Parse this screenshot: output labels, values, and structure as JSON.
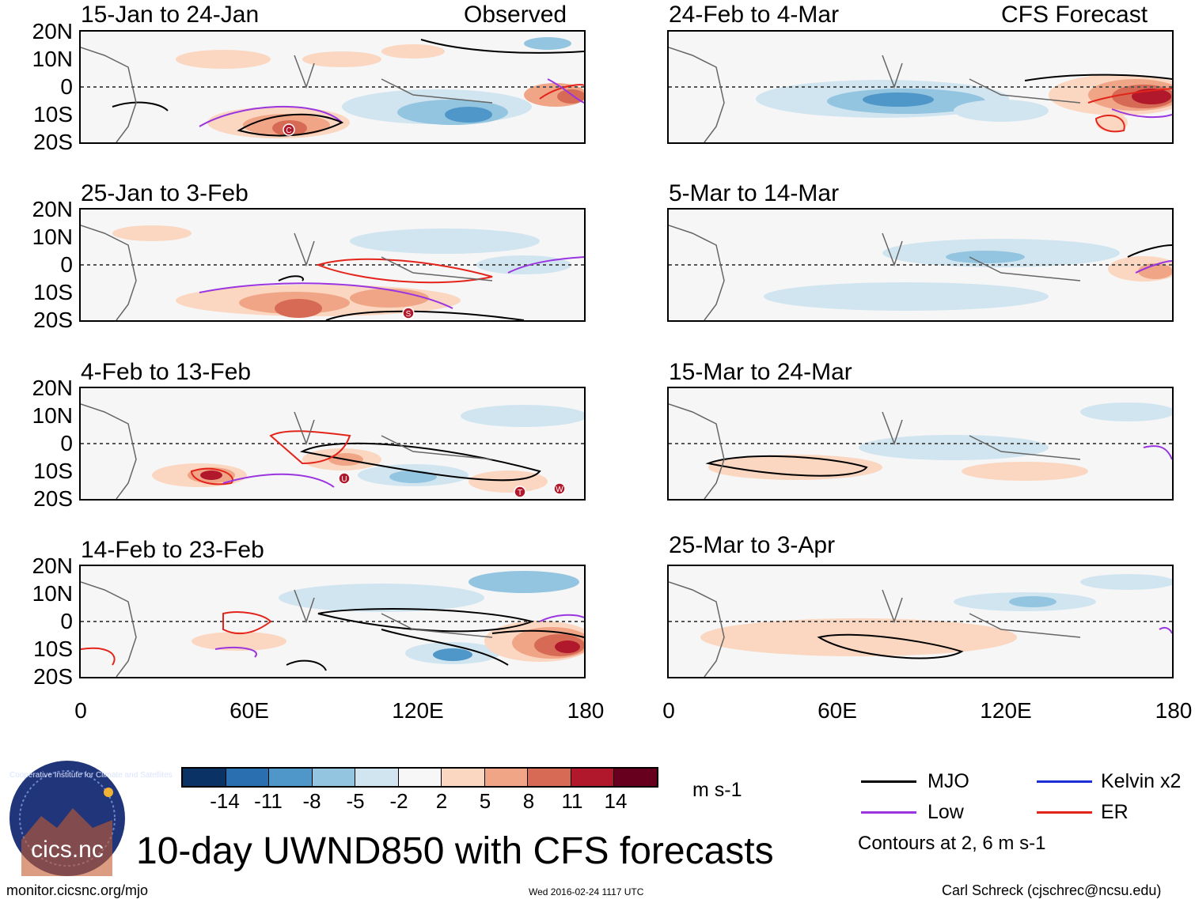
{
  "panels": [
    {
      "title": "15-Jan to 24-Jan",
      "tag": "Observed",
      "cyclones": [
        "C"
      ]
    },
    {
      "title": "24-Feb to 4-Mar",
      "tag": "CFS Forecast",
      "cyclones": []
    },
    {
      "title": "25-Jan to 3-Feb",
      "tag": "",
      "cyclones": [
        "S"
      ]
    },
    {
      "title": "5-Mar to 14-Mar",
      "tag": "",
      "cyclones": []
    },
    {
      "title": "4-Feb to 13-Feb",
      "tag": "",
      "cyclones": [
        "U",
        "T",
        "W"
      ]
    },
    {
      "title": "15-Mar to 24-Mar",
      "tag": "",
      "cyclones": []
    },
    {
      "title": "14-Feb to 23-Feb",
      "tag": "",
      "cyclones": []
    },
    {
      "title": "25-Mar to 3-Apr",
      "tag": "",
      "cyclones": []
    }
  ],
  "lat_labels": [
    "20N",
    "10N",
    "0",
    "10S",
    "20S"
  ],
  "lon_labels": [
    "0",
    "60E",
    "120E",
    "180"
  ],
  "colorbar": {
    "colors": [
      "#0a3264",
      "#2a6fb0",
      "#4f97c8",
      "#93c4e0",
      "#d1e5f0",
      "#f7f7f7",
      "#fbd6c0",
      "#f0a587",
      "#d66a55",
      "#b2182b",
      "#67001f"
    ],
    "labels": [
      "-14",
      "-11",
      "-8",
      "-5",
      "-2",
      "2",
      "5",
      "8",
      "11",
      "14"
    ],
    "units": "m s-1"
  },
  "legend": {
    "items": [
      {
        "label": "MJO",
        "color": "#000000"
      },
      {
        "label": "Kelvin x2",
        "color": "#1f2fd6"
      },
      {
        "label": "Low",
        "color": "#9a35e0"
      },
      {
        "label": "ER",
        "color": "#e3241b"
      }
    ],
    "contours_note": "Contours at 2, 6 m s-1"
  },
  "logo": {
    "text": "cics.nc",
    "ring_text": "Cooperative Institute for Climate and Satellites"
  },
  "main_title": "10-day UWND850 with CFS forecasts",
  "footer": {
    "url": "monitor.cicsnc.org/mjo",
    "timestamp": "Wed 2016-02-24 1117 UTC",
    "credit": "Carl Schreck (cjschrec@ncsu.edu)"
  }
}
